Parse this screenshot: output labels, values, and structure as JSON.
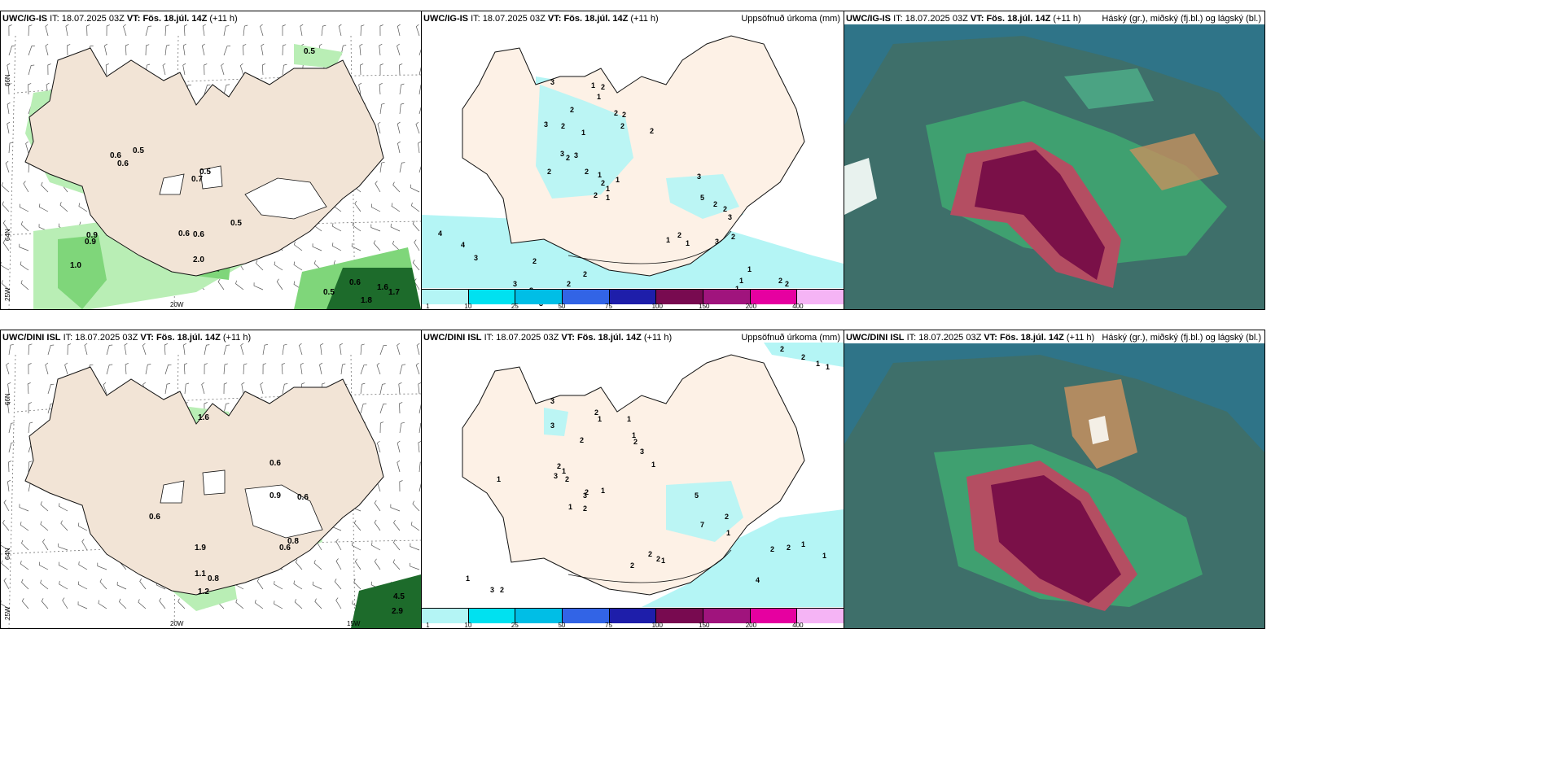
{
  "panels": {
    "p1": {
      "model": "UWC/IG-IS",
      "it_label": "IT:",
      "it_value": "18.07.2025 03Z",
      "vt_label": "VT:",
      "vt_value": "Fös. 18.júl. 14Z",
      "lead": "(+11 h)",
      "right_title": ""
    },
    "p2": {
      "model": "UWC/IG-IS",
      "it_label": "IT:",
      "it_value": "18.07.2025 03Z",
      "vt_label": "VT:",
      "vt_value": "Fös. 18.júl. 14Z",
      "lead": "(+11 h)",
      "right_title": "Uppsöfnuð úrkoma (mm)"
    },
    "p3": {
      "model": "UWC/IG-IS",
      "it_label": "IT:",
      "it_value": "18.07.2025 03Z",
      "vt_label": "VT:",
      "vt_value": "Fös. 18.júl. 14Z",
      "lead": "(+11 h)",
      "right_title": "Háský (gr.), miðský (fj.bl.) og lágský (bl.)"
    },
    "p4": {
      "model": "UWC/DINI ISL",
      "it_label": "IT:",
      "it_value": "18.07.2025 03Z",
      "vt_label": "VT:",
      "vt_value": "Fös. 18.júl. 14Z",
      "lead": "(+11 h)",
      "right_title": ""
    },
    "p5": {
      "model": "UWC/DINI ISL",
      "it_label": "IT:",
      "it_value": "18.07.2025 03Z",
      "vt_label": "VT:",
      "vt_value": "Fös. 18.júl. 14Z",
      "lead": "(+11 h)",
      "right_title": "Uppsöfnuð úrkoma (mm)"
    },
    "p6": {
      "model": "UWC/DINI ISL",
      "it_label": "IT:",
      "it_value": "18.07.2025 03Z",
      "vt_label": "VT:",
      "vt_value": "Fös. 18.júl. 14Z",
      "lead": "(+11 h)",
      "right_title": "Háský (gr.), miðský (fj.bl.) og lágský (bl.)"
    }
  },
  "axes": {
    "lat66": "66N",
    "lat64": "64N",
    "lon25": "25W",
    "lon20": "20W",
    "lon15": "15W"
  },
  "colorbar": {
    "ticks": [
      "1",
      "10",
      "25",
      "50",
      "75",
      "100",
      "150",
      "200",
      "400"
    ],
    "colors": [
      "#b4f5f5",
      "#00e1f0",
      "#00bee6",
      "#3264e6",
      "#1e1eaa",
      "#780a50",
      "#a0147d",
      "#e600a0",
      "#f5b4f5"
    ]
  },
  "colors": {
    "land": "#f2e4d6",
    "land_light": "#fdf1e6",
    "precip_light": "#b9eeb5",
    "precip_mid": "#7fd67a",
    "precip_dark": "#1d6b2b",
    "cloud_sea": "#2f7488",
    "cloud_mid": "#3fa070",
    "cloud_high": "#7a1048"
  },
  "p1_labels": [
    "0.5",
    "0.6",
    "0.5",
    "0.6",
    "0.5",
    "0.7",
    "0.9",
    "0.9",
    "1.0",
    "0.5",
    "0.6",
    "0.6",
    "2.0",
    "0.5",
    "0.6",
    "1.6",
    "1.7",
    "1.8"
  ],
  "p4_labels": [
    "1.6",
    "0.6",
    "0.9",
    "0.6",
    "0.6",
    "0.8",
    "0.6",
    "1.9",
    "1.1",
    "0.8",
    "1.2",
    "4.5",
    "2.9"
  ],
  "p2_labels": [
    "3",
    "1",
    "2",
    "1",
    "2",
    "2",
    "2",
    "3",
    "2",
    "1",
    "2",
    "2",
    "3",
    "2",
    "3",
    "2",
    "2",
    "1",
    "2",
    "1",
    "1",
    "2",
    "1",
    "3",
    "5",
    "2",
    "2",
    "3",
    "1",
    "2",
    "1",
    "2",
    "4",
    "4",
    "3",
    "2",
    "3",
    "2",
    "3",
    "2",
    "3",
    "3",
    "1",
    "1",
    "1",
    "2",
    "2"
  ],
  "p5_labels": [
    "2",
    "2",
    "1",
    "1",
    "3",
    "2",
    "1",
    "2",
    "1",
    "3",
    "1",
    "2",
    "3",
    "1",
    "2",
    "1",
    "3",
    "2",
    "1",
    "1",
    "2",
    "3",
    "5",
    "7",
    "2",
    "1",
    "1",
    "2",
    "2",
    "2",
    "2",
    "1",
    "4",
    "2",
    "2",
    "1",
    "1",
    "1",
    "3",
    "2"
  ]
}
